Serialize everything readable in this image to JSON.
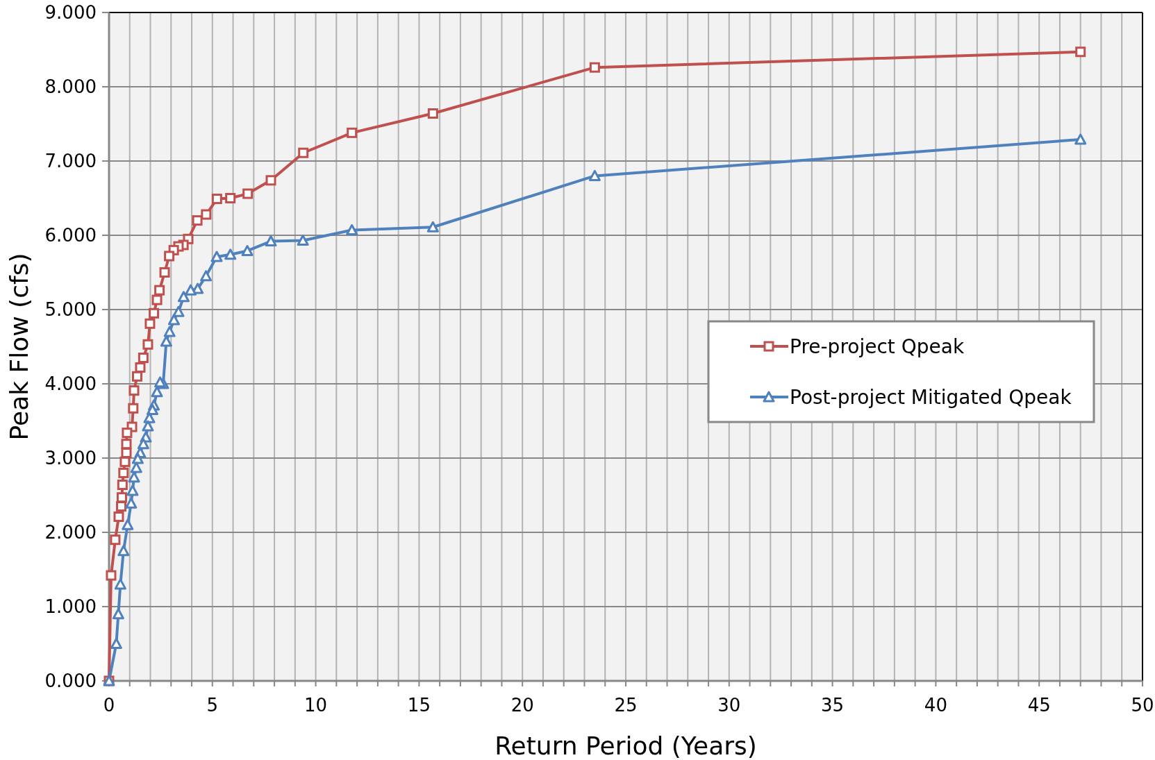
{
  "chart_data": {
    "type": "line",
    "xlabel": "Return Period (Years)",
    "ylabel": "Peak Flow (cfs)",
    "xlim": [
      0,
      50
    ],
    "ylim": [
      0,
      9
    ],
    "xticks": [
      0,
      {
        "value": 1,
        "label": null
      },
      {
        "value": 2,
        "label": null
      },
      {
        "value": 3,
        "label": null
      },
      {
        "value": 4,
        "label": null
      },
      5,
      {
        "value": 6,
        "label": null
      },
      {
        "value": 7,
        "label": null
      },
      {
        "value": 8,
        "label": null
      },
      {
        "value": 9,
        "label": null
      },
      10,
      {
        "value": 11,
        "label": null
      },
      {
        "value": 12,
        "label": null
      },
      {
        "value": 13,
        "label": null
      },
      {
        "value": 14,
        "label": null
      },
      15,
      {
        "value": 16,
        "label": null
      },
      {
        "value": 17,
        "label": null
      },
      {
        "value": 18,
        "label": null
      },
      {
        "value": 19,
        "label": null
      },
      20,
      {
        "value": 21,
        "label": null
      },
      {
        "value": 22,
        "label": null
      },
      {
        "value": 23,
        "label": null
      },
      {
        "value": 24,
        "label": null
      },
      25,
      {
        "value": 26,
        "label": null
      },
      {
        "value": 27,
        "label": null
      },
      {
        "value": 28,
        "label": null
      },
      {
        "value": 29,
        "label": null
      },
      30,
      {
        "value": 31,
        "label": null
      },
      {
        "value": 32,
        "label": null
      },
      {
        "value": 33,
        "label": null
      },
      {
        "value": 34,
        "label": null
      },
      35,
      {
        "value": 36,
        "label": null
      },
      {
        "value": 37,
        "label": null
      },
      {
        "value": 38,
        "label": null
      },
      {
        "value": 39,
        "label": null
      },
      40,
      {
        "value": 41,
        "label": null
      },
      {
        "value": 42,
        "label": null
      },
      {
        "value": 43,
        "label": null
      },
      {
        "value": 44,
        "label": null
      },
      45,
      {
        "value": 46,
        "label": null
      },
      {
        "value": 47,
        "label": null
      },
      {
        "value": 48,
        "label": null
      },
      {
        "value": 49,
        "label": null
      },
      50
    ],
    "yticks": [
      {
        "value": 0,
        "label": "0.000"
      },
      {
        "value": 1,
        "label": "1.000"
      },
      {
        "value": 2,
        "label": "2.000"
      },
      {
        "value": 3,
        "label": "3.000"
      },
      {
        "value": 4,
        "label": "4.000"
      },
      {
        "value": 5,
        "label": "5.000"
      },
      {
        "value": 6,
        "label": "6.000"
      },
      {
        "value": 7,
        "label": "7.000"
      },
      {
        "value": 8,
        "label": "8.000"
      },
      {
        "value": 9,
        "label": "9.000"
      }
    ],
    "grid": true,
    "legend": "right",
    "line_style": "solid",
    "series": [
      {
        "name": "Pre-project Qpeak",
        "color": "#c0504d",
        "marker": "square",
        "x": [
          47,
          23.5,
          15.67,
          11.75,
          9.4,
          7.83,
          6.71,
          5.87,
          5.22,
          4.7,
          4.27,
          3.83,
          3.6,
          3.36,
          3.13,
          2.91,
          2.69,
          2.44,
          2.32,
          2.17,
          1.98,
          1.88,
          1.66,
          1.51,
          1.36,
          1.21,
          1.17,
          1.11,
          0.87,
          0.84,
          0.84,
          0.77,
          0.7,
          0.65,
          0.62,
          0.59,
          0.47,
          0.3,
          0.1,
          0
        ],
        "values": [
          8.47,
          8.26,
          7.64,
          7.38,
          7.11,
          6.74,
          6.56,
          6.5,
          6.49,
          6.28,
          6.2,
          5.95,
          5.87,
          5.85,
          5.8,
          5.72,
          5.5,
          5.26,
          5.13,
          4.95,
          4.81,
          4.53,
          4.35,
          4.22,
          4.1,
          3.91,
          3.67,
          3.42,
          3.34,
          3.19,
          3.07,
          2.95,
          2.8,
          2.64,
          2.47,
          2.35,
          2.21,
          1.9,
          1.42,
          0
        ]
      },
      {
        "name": "Post-project Mitigated Qpeak",
        "color": "#4f81bd",
        "marker": "triangle",
        "x": [
          47,
          23.5,
          15.67,
          11.75,
          9.38,
          7.83,
          6.69,
          5.87,
          5.21,
          4.69,
          4.29,
          3.95,
          3.61,
          3.36,
          3.14,
          2.93,
          2.77,
          2.62,
          2.47,
          2.32,
          2.17,
          2.1,
          1.95,
          1.88,
          1.78,
          1.66,
          1.51,
          1.39,
          1.32,
          1.21,
          1.14,
          1.07,
          0.9,
          0.7,
          0.55,
          0.45,
          0.35,
          0
        ],
        "values": [
          7.29,
          6.8,
          6.11,
          6.07,
          5.93,
          5.92,
          5.79,
          5.74,
          5.71,
          5.45,
          5.28,
          5.26,
          5.17,
          4.97,
          4.86,
          4.7,
          4.57,
          4.0,
          4.02,
          3.89,
          3.71,
          3.65,
          3.54,
          3.43,
          3.28,
          3.19,
          3.07,
          2.99,
          2.87,
          2.74,
          2.56,
          2.39,
          2.1,
          1.75,
          1.3,
          0.9,
          0.5,
          0
        ]
      }
    ]
  }
}
